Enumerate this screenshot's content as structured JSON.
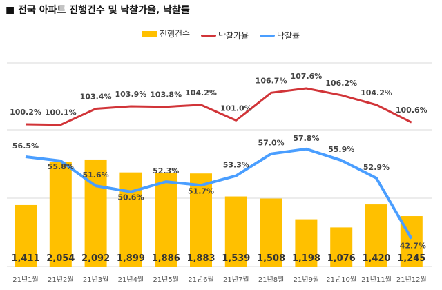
{
  "title": "■ 전국 아파트 진행건수 및 낙찰가율, 낙찰률",
  "chart_data": {
    "type": "bar+line",
    "categories": [
      "21년1월",
      "21년2월",
      "21년3월",
      "21년4월",
      "21년5월",
      "21년6월",
      "21년7월",
      "21년8월",
      "21년9월",
      "21년10월",
      "21년11월",
      "21년12월"
    ],
    "series": [
      {
        "name": "진행건수",
        "type": "bar",
        "color": "#FFC000",
        "values": [
          1411,
          2054,
          2092,
          1899,
          1886,
          1883,
          1539,
          1508,
          1198,
          1076,
          1420,
          1245
        ],
        "labels": [
          "1,411",
          "2,054",
          "2,092",
          "1,899",
          "1,886",
          "1,883",
          "1,539",
          "1,508",
          "1,198",
          "1,076",
          "1,420",
          "1,245"
        ]
      },
      {
        "name": "낙찰가율",
        "type": "line",
        "color": "#D13438",
        "values": [
          100.2,
          100.1,
          103.4,
          103.9,
          103.8,
          104.2,
          101.0,
          106.7,
          107.6,
          106.2,
          104.2,
          100.6
        ],
        "labels": [
          "100.2%",
          "100.1%",
          "103.4%",
          "103.9%",
          "103.8%",
          "104.2%",
          "101.0%",
          "106.7%",
          "107.6%",
          "106.2%",
          "104.2%",
          "100.6%"
        ]
      },
      {
        "name": "낙찰률",
        "type": "line",
        "color": "#4A9EFF",
        "values": [
          56.5,
          55.8,
          51.6,
          50.6,
          52.3,
          51.7,
          53.3,
          57.0,
          57.8,
          55.9,
          52.9,
          42.7
        ],
        "labels": [
          "56.5%",
          "55.8%",
          "51.6%",
          "50.6%",
          "52.3%",
          "51.7%",
          "53.3%",
          "57.0%",
          "57.8%",
          "55.9%",
          "52.9%",
          "42.7%"
        ]
      }
    ],
    "grid": true,
    "legend": "top"
  }
}
